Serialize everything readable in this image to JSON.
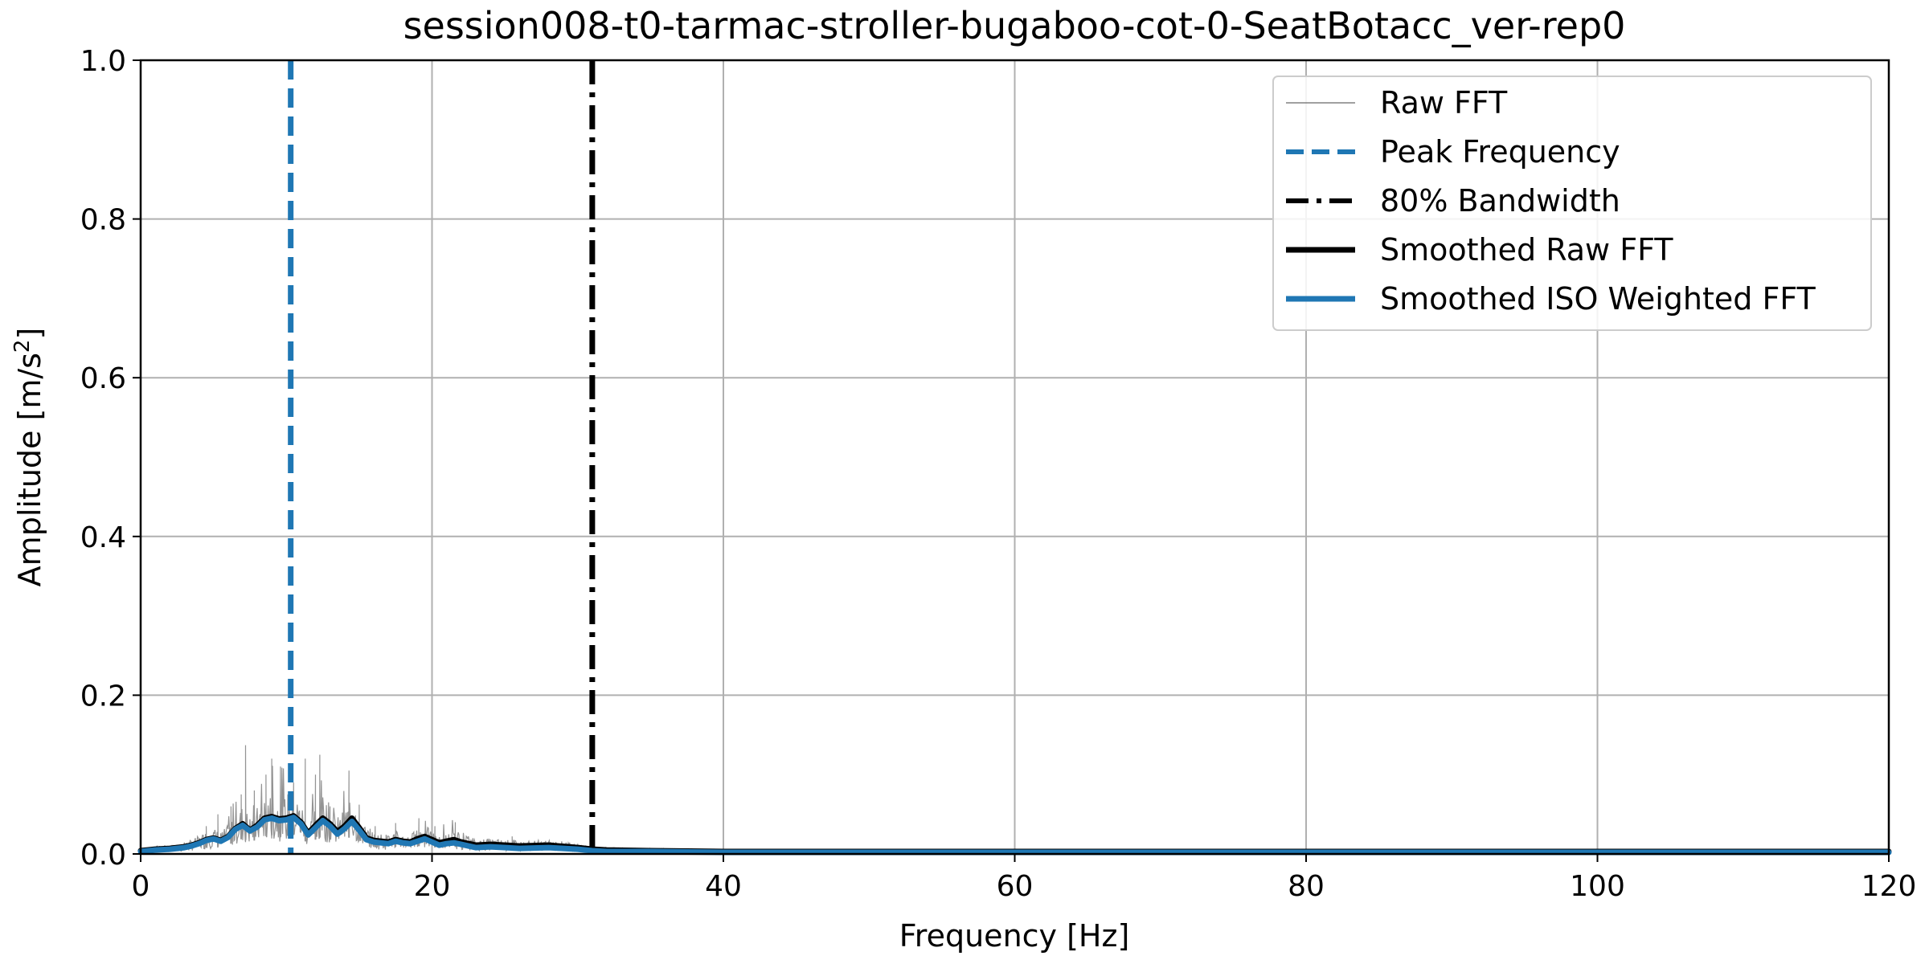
{
  "chart_data": {
    "type": "line",
    "title": "session008-t0-tarmac-stroller-bugaboo-cot-0-SeatBotacc_ver-rep0",
    "xlabel": "Frequency [Hz]",
    "ylabel_main": "Amplitude [m/s",
    "ylabel_sup": "2",
    "ylabel_end": "]",
    "xlim": [
      0,
      120
    ],
    "ylim": [
      0,
      1.0
    ],
    "x_ticks": [
      0,
      20,
      40,
      60,
      80,
      100,
      120
    ],
    "x_tick_labels": [
      "0",
      "20",
      "40",
      "60",
      "80",
      "100",
      "120"
    ],
    "y_ticks": [
      0.0,
      0.2,
      0.4,
      0.6,
      0.8,
      1.0
    ],
    "y_tick_labels": [
      "0.0",
      "0.2",
      "0.4",
      "0.6",
      "0.8",
      "1.0"
    ],
    "grid": true,
    "legend_position": "top-right",
    "colors": {
      "raw": "#808080",
      "peak": "#1f77b4",
      "bandwidth": "#000000",
      "smoothed_raw": "#000000",
      "smoothed_iso": "#1f77b4",
      "grid": "#b0b0b0"
    },
    "legend": [
      {
        "label": "Raw FFT",
        "style": "raw"
      },
      {
        "label": "Peak Frequency",
        "style": "peak"
      },
      {
        "label": "80% Bandwidth",
        "style": "bandwidth"
      },
      {
        "label": "Smoothed Raw FFT",
        "style": "smoothed_raw"
      },
      {
        "label": "Smoothed ISO Weighted FFT",
        "style": "smoothed_iso"
      }
    ],
    "peak_frequency": 10.3,
    "bandwidth_80": 31.0,
    "raw_spikes": [
      {
        "x": 4.5,
        "y": 0.035
      },
      {
        "x": 5.3,
        "y": 0.05
      },
      {
        "x": 6.2,
        "y": 0.06
      },
      {
        "x": 6.9,
        "y": 0.075
      },
      {
        "x": 7.2,
        "y": 0.137
      },
      {
        "x": 7.8,
        "y": 0.08
      },
      {
        "x": 8.6,
        "y": 0.1
      },
      {
        "x": 9.0,
        "y": 0.12
      },
      {
        "x": 9.6,
        "y": 0.11
      },
      {
        "x": 10.1,
        "y": 0.075
      },
      {
        "x": 10.5,
        "y": 0.09
      },
      {
        "x": 11.3,
        "y": 0.12
      },
      {
        "x": 12.0,
        "y": 0.1
      },
      {
        "x": 12.3,
        "y": 0.125
      },
      {
        "x": 13.0,
        "y": 0.06
      },
      {
        "x": 14.3,
        "y": 0.105
      },
      {
        "x": 15.0,
        "y": 0.05
      },
      {
        "x": 16.1,
        "y": 0.035
      },
      {
        "x": 17.5,
        "y": 0.03
      },
      {
        "x": 19.1,
        "y": 0.045
      },
      {
        "x": 20.2,
        "y": 0.035
      },
      {
        "x": 21.6,
        "y": 0.04
      },
      {
        "x": 22.8,
        "y": 0.02
      },
      {
        "x": 25.5,
        "y": 0.015
      }
    ],
    "smoothed_raw": {
      "x": [
        0,
        1,
        2,
        3,
        3.5,
        4,
        4.5,
        5,
        5.5,
        6,
        6.5,
        7,
        7.5,
        8,
        8.5,
        9,
        9.5,
        10,
        10.5,
        11,
        11.5,
        12,
        12.5,
        13,
        13.5,
        14,
        14.5,
        15,
        15.5,
        16,
        17,
        17.5,
        18,
        18.5,
        19,
        19.5,
        20,
        20.5,
        21,
        21.5,
        22,
        23,
        24,
        26,
        28,
        30,
        31,
        32,
        35,
        40,
        50,
        60,
        80,
        100,
        120
      ],
      "y": [
        0.004,
        0.006,
        0.007,
        0.009,
        0.011,
        0.014,
        0.018,
        0.02,
        0.017,
        0.022,
        0.032,
        0.038,
        0.03,
        0.036,
        0.045,
        0.047,
        0.044,
        0.045,
        0.048,
        0.04,
        0.026,
        0.036,
        0.045,
        0.038,
        0.028,
        0.035,
        0.045,
        0.033,
        0.02,
        0.017,
        0.015,
        0.018,
        0.016,
        0.015,
        0.019,
        0.022,
        0.018,
        0.014,
        0.016,
        0.018,
        0.015,
        0.011,
        0.012,
        0.01,
        0.011,
        0.008,
        0.006,
        0.005,
        0.004,
        0.003,
        0.003,
        0.003,
        0.003,
        0.003,
        0.003
      ]
    },
    "smoothed_iso": {
      "x": [
        0,
        1,
        2,
        3,
        3.5,
        4,
        4.5,
        5,
        5.5,
        6,
        6.5,
        7,
        7.5,
        8,
        8.5,
        9,
        9.5,
        10,
        10.5,
        11,
        11.5,
        12,
        12.5,
        13,
        13.5,
        14,
        14.5,
        15,
        15.5,
        16,
        17,
        17.5,
        18,
        18.5,
        19,
        19.5,
        20,
        20.5,
        21,
        21.5,
        22,
        23,
        24,
        26,
        28,
        30,
        31,
        32,
        35,
        40,
        50,
        60,
        80,
        100,
        120
      ],
      "y": [
        0.003,
        0.005,
        0.006,
        0.008,
        0.01,
        0.013,
        0.017,
        0.019,
        0.016,
        0.021,
        0.031,
        0.036,
        0.029,
        0.034,
        0.043,
        0.045,
        0.042,
        0.043,
        0.046,
        0.038,
        0.024,
        0.033,
        0.042,
        0.035,
        0.025,
        0.032,
        0.041,
        0.03,
        0.018,
        0.015,
        0.013,
        0.016,
        0.014,
        0.013,
        0.016,
        0.019,
        0.015,
        0.011,
        0.013,
        0.014,
        0.012,
        0.008,
        0.009,
        0.007,
        0.008,
        0.006,
        0.004,
        0.003,
        0.003,
        0.002,
        0.002,
        0.002,
        0.002,
        0.002,
        0.002
      ]
    }
  }
}
